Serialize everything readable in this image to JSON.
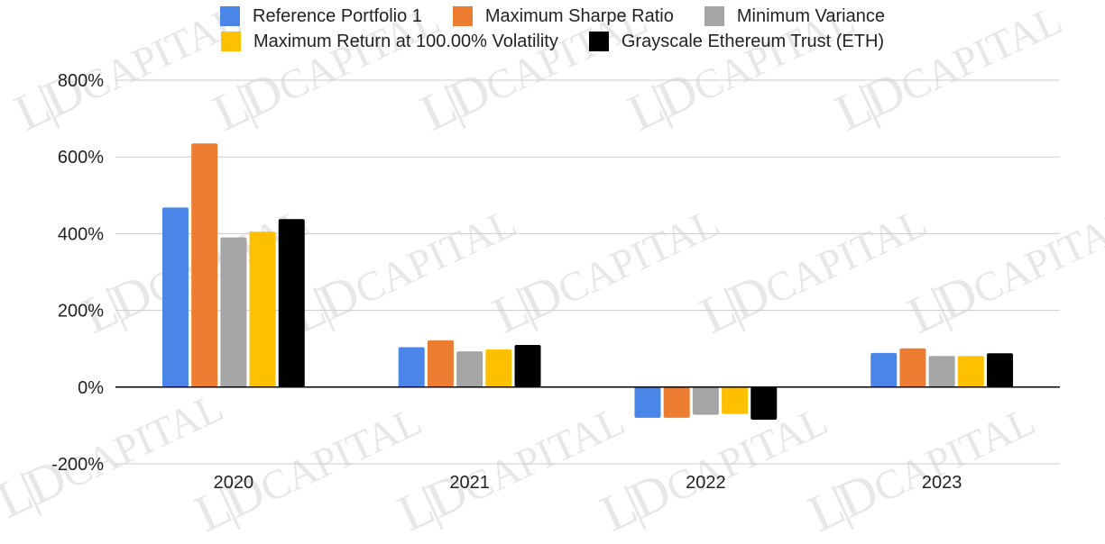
{
  "colors": {
    "background": "#ffffff",
    "grid": "#cccccc",
    "axis": "#000000",
    "text": "#222222"
  },
  "watermark": {
    "monogram": "L|D",
    "text": "CAPITAL"
  },
  "chart_data": {
    "type": "bar",
    "title": "",
    "xlabel": "",
    "ylabel": "",
    "categories": [
      "2020",
      "2021",
      "2022",
      "2023"
    ],
    "ylim": [
      -200,
      800
    ],
    "yticks": [
      -200,
      0,
      200,
      400,
      600,
      800
    ],
    "ytick_labels": [
      "-200%",
      "0%",
      "200%",
      "400%",
      "600%",
      "800%"
    ],
    "value_unit": "%",
    "grid": true,
    "legend_position": "top",
    "series": [
      {
        "name": "Reference Portfolio 1",
        "color": "#4a86e8",
        "values": [
          468,
          104,
          -80,
          89
        ]
      },
      {
        "name": "Maximum Sharpe Ratio",
        "color": "#ed7d31",
        "values": [
          635,
          122,
          -80,
          101
        ]
      },
      {
        "name": "Minimum Variance",
        "color": "#a5a5a5",
        "values": [
          390,
          93,
          -72,
          81
        ]
      },
      {
        "name": "Maximum Return at 100.00% Volatility",
        "color": "#ffc000",
        "values": [
          405,
          98,
          -70,
          81
        ]
      },
      {
        "name": "Grayscale Ethereum Trust (ETH)",
        "color": "#000000",
        "values": [
          438,
          110,
          -85,
          88
        ]
      }
    ]
  }
}
